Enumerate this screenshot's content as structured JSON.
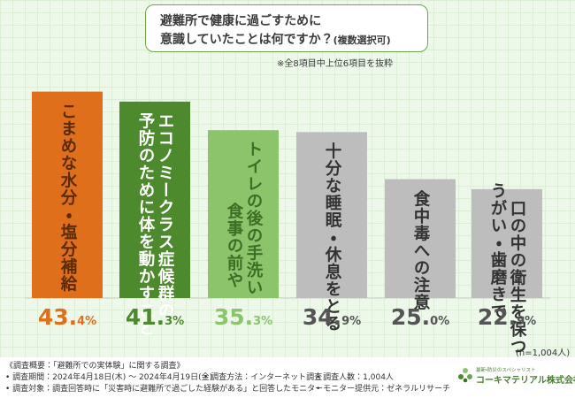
{
  "title": {
    "line1": "避難所で健康に過ごすために",
    "line2": "意識していたことは何ですか？",
    "line2_suffix": "(複数選択可)"
  },
  "note": "※全8項目中上位6項目を抜粋",
  "chart_data": {
    "type": "bar",
    "title": "避難所で健康に過ごすために意識していたことは何ですか？(複数選択可)",
    "categories": [
      "こまめな水分・塩分補給",
      "エコノミークラス症候群の予防のために体を動かすこと",
      "トイレの後の手洗い・食事の前や手洗い",
      "十分な睡眠・休息をとる",
      "食中毒への注意",
      "うがい・歯磨きで口の中の衛生を保つこと"
    ],
    "labels_vertical": [
      [
        "こまめな水分・塩分補給"
      ],
      [
        "エコノミークラス症候群の",
        "予防のために体を動かすこと"
      ],
      [
        "トイレの後の手洗い",
        "食事の前や"
      ],
      [
        "十分な睡眠・休息をとる"
      ],
      [
        "食中毒への注意"
      ],
      [
        "口の中の衛生を保つこと",
        "うがい・歯磨きで"
      ]
    ],
    "values": [
      43.4,
      41.3,
      35.3,
      34.9,
      25.0,
      22.9
    ],
    "value_labels": [
      {
        "num": "43.",
        "dec": "4%"
      },
      {
        "num": "41.",
        "dec": "3%"
      },
      {
        "num": "35.",
        "dec": "3%"
      },
      {
        "num": "34.",
        "dec": "9%"
      },
      {
        "num": "25.",
        "dec": "0%"
      },
      {
        "num": "22.",
        "dec": "9%"
      }
    ],
    "bar_colors": [
      "#e06f1c",
      "#4d8a2e",
      "#8cc46c",
      "#bdbdbd",
      "#bdbdbd",
      "#bdbdbd"
    ],
    "text_colors": [
      "#5a2a00",
      "#ffffff",
      "#ffffff",
      "#ffffff",
      "#ffffff",
      "#ffffff"
    ],
    "label_colors": [
      "#5a2a00",
      "#ffffff",
      "#3d6e25",
      "#333333",
      "#333333",
      "#333333"
    ],
    "value_colors": [
      "#e06f1c",
      "#4d8a2e",
      "#8cc46c",
      "#555555",
      "#555555",
      "#555555"
    ],
    "ylim": [
      0,
      45
    ],
    "xlabel": "",
    "ylabel": ""
  },
  "n_label": "(n=1,004人)",
  "footer": {
    "line1": "《調査概要：「避難所での実体験」に関する調査》",
    "line2a": "• 調査期間：2024年4月18日(木) ～ 2024年4月19日(金)",
    "line2b": "• 調査方法：インターネット調査",
    "line2c": "• 調査人数：1,004人",
    "line3a": "• 調査対象：調査回答時に「災害時に避難所で過ごした経験がある」と回答したモニター",
    "line3b": "• モニター提供元：ゼネラルリサーチ"
  },
  "logo": {
    "top_text": "最新・防災のスペシャリスト",
    "main_text": "コーキマテリアル株式会社"
  }
}
